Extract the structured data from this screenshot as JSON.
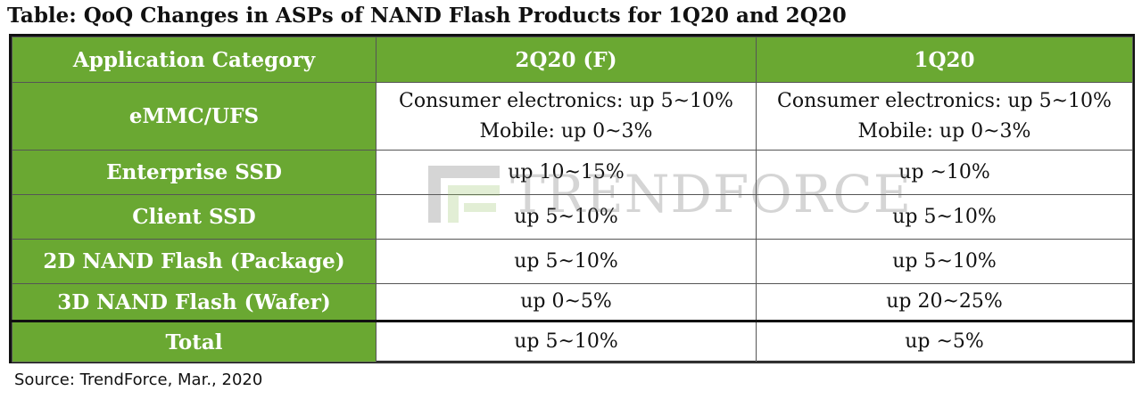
{
  "title": "Table: QoQ Changes in ASPs of NAND Flash Products for 1Q20 and 2Q20",
  "table": {
    "headers": [
      "Application Category",
      "2Q20 (F)",
      "1Q20"
    ],
    "rows": [
      {
        "category": "eMMC/UFS",
        "q2_line1": "Consumer electronics: up 5~10%",
        "q2_line2": "Mobile: up 0~3%",
        "q1_line1": "Consumer electronics: up 5~10%",
        "q1_line2": "Mobile: up 0~3%"
      },
      {
        "category": "Enterprise SSD",
        "q2": "up 10~15%",
        "q1": "up ~10%"
      },
      {
        "category": "Client SSD",
        "q2": "up 5~10%",
        "q1": "up 5~10%"
      },
      {
        "category": "2D NAND Flash (Package)",
        "q2": "up 5~10%",
        "q1": "up 5~10%"
      },
      {
        "category": "3D NAND Flash (Wafer)",
        "q2": "up 0~5%",
        "q1": "up 20~25%"
      }
    ],
    "total": {
      "category": "Total",
      "q2": "up 5~10%",
      "q1": "up ~5%"
    }
  },
  "watermark": {
    "text": "TRENDFORCE",
    "icon": "trendforce-logo-icon"
  },
  "source": "Source: TrendForce, Mar., 2020",
  "colors": {
    "header_green": "#6aa832",
    "border": "#111111"
  }
}
